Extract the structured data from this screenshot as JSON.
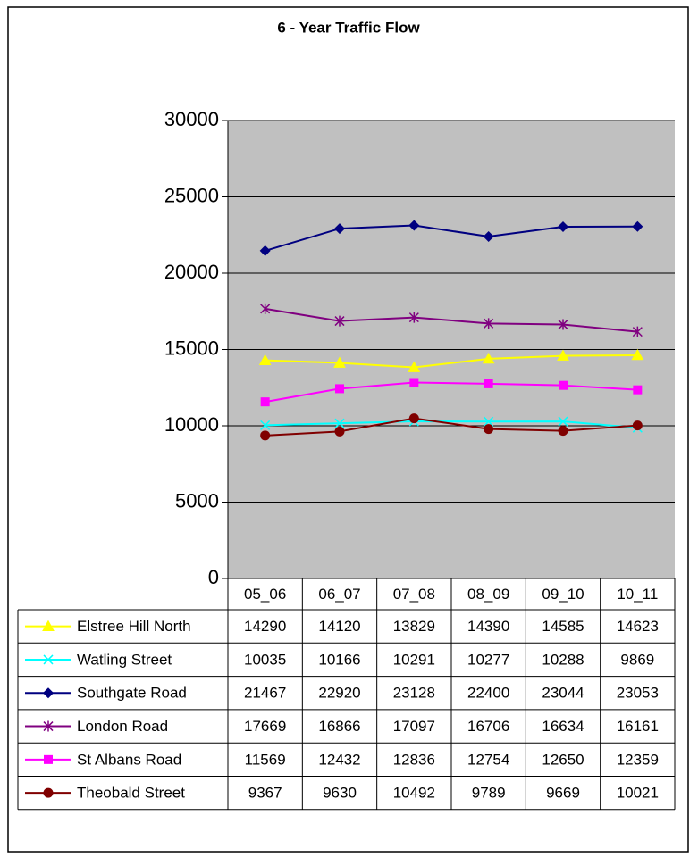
{
  "chart_data": {
    "type": "line",
    "title": "6 - Year Traffic Flow",
    "categories": [
      "05_06",
      "06_07",
      "07_08",
      "08_09",
      "09_10",
      "10_11"
    ],
    "ylim": [
      0,
      30000
    ],
    "yticks": [
      0,
      5000,
      10000,
      15000,
      20000,
      25000,
      30000
    ],
    "grid": true,
    "series": [
      {
        "name": "Elstree Hill North",
        "color": "#ffff00",
        "marker": "triangle",
        "values": [
          14290,
          14120,
          13829,
          14390,
          14585,
          14623
        ]
      },
      {
        "name": "Watling Street",
        "color": "#00ffff",
        "marker": "x",
        "values": [
          10035,
          10166,
          10291,
          10277,
          10288,
          9869
        ]
      },
      {
        "name": "Southgate Road",
        "color": "#000080",
        "marker": "diamond",
        "values": [
          21467,
          22920,
          23128,
          22400,
          23044,
          23053
        ]
      },
      {
        "name": "London Road",
        "color": "#800080",
        "marker": "star",
        "values": [
          17669,
          16866,
          17097,
          16706,
          16634,
          16161
        ]
      },
      {
        "name": "St Albans Road",
        "color": "#ff00ff",
        "marker": "square",
        "values": [
          11569,
          12432,
          12836,
          12754,
          12650,
          12359
        ]
      },
      {
        "name": "Theobald Street",
        "color": "#800000",
        "marker": "circle",
        "values": [
          9367,
          9630,
          10492,
          9789,
          9669,
          10021
        ]
      }
    ]
  }
}
